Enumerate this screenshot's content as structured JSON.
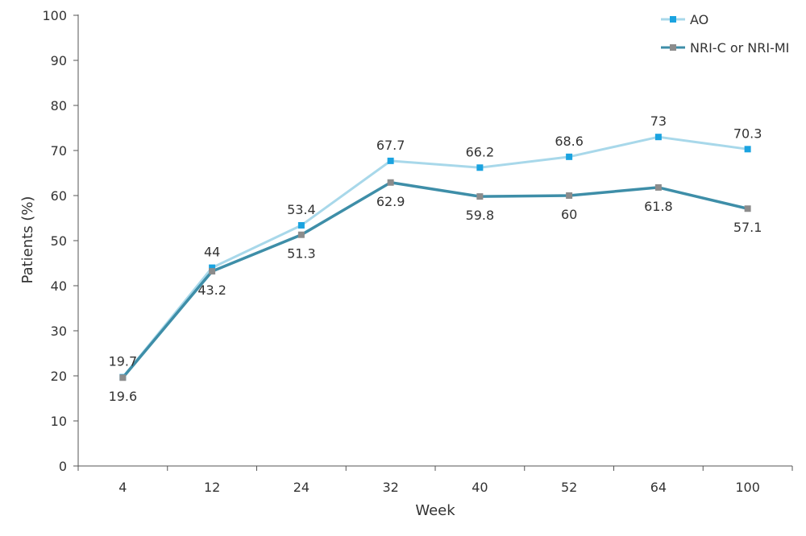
{
  "chart_data": {
    "type": "line",
    "categories": [
      "4",
      "12",
      "24",
      "32",
      "40",
      "52",
      "64",
      "100"
    ],
    "series": [
      {
        "name": "AO",
        "values": [
          19.7,
          44,
          53.4,
          67.7,
          66.2,
          68.6,
          73,
          70.3
        ],
        "value_labels": [
          "19.7",
          "44",
          "53.4",
          "67.7",
          "66.2",
          "68.6",
          "73",
          "70.3"
        ],
        "line_color": "#a8d8ea",
        "marker_color": "#1aa3e0"
      },
      {
        "name": "NRI-C or NRI-MI",
        "values": [
          19.6,
          43.2,
          51.3,
          62.9,
          59.8,
          60,
          61.8,
          57.1
        ],
        "value_labels": [
          "19.6",
          "43.2",
          "51.3",
          "62.9",
          "59.8",
          "60",
          "61.8",
          "57.1"
        ],
        "line_color": "#3e8ea8",
        "marker_color": "#8c8c8c"
      }
    ],
    "xlabel": "Week",
    "ylabel": "Patients (%)",
    "ylim": [
      0,
      100
    ],
    "yticks": [
      "0",
      "10",
      "20",
      "30",
      "40",
      "50",
      "60",
      "70",
      "80",
      "90",
      "100"
    ],
    "grid": false,
    "legend_position": "top-right"
  }
}
